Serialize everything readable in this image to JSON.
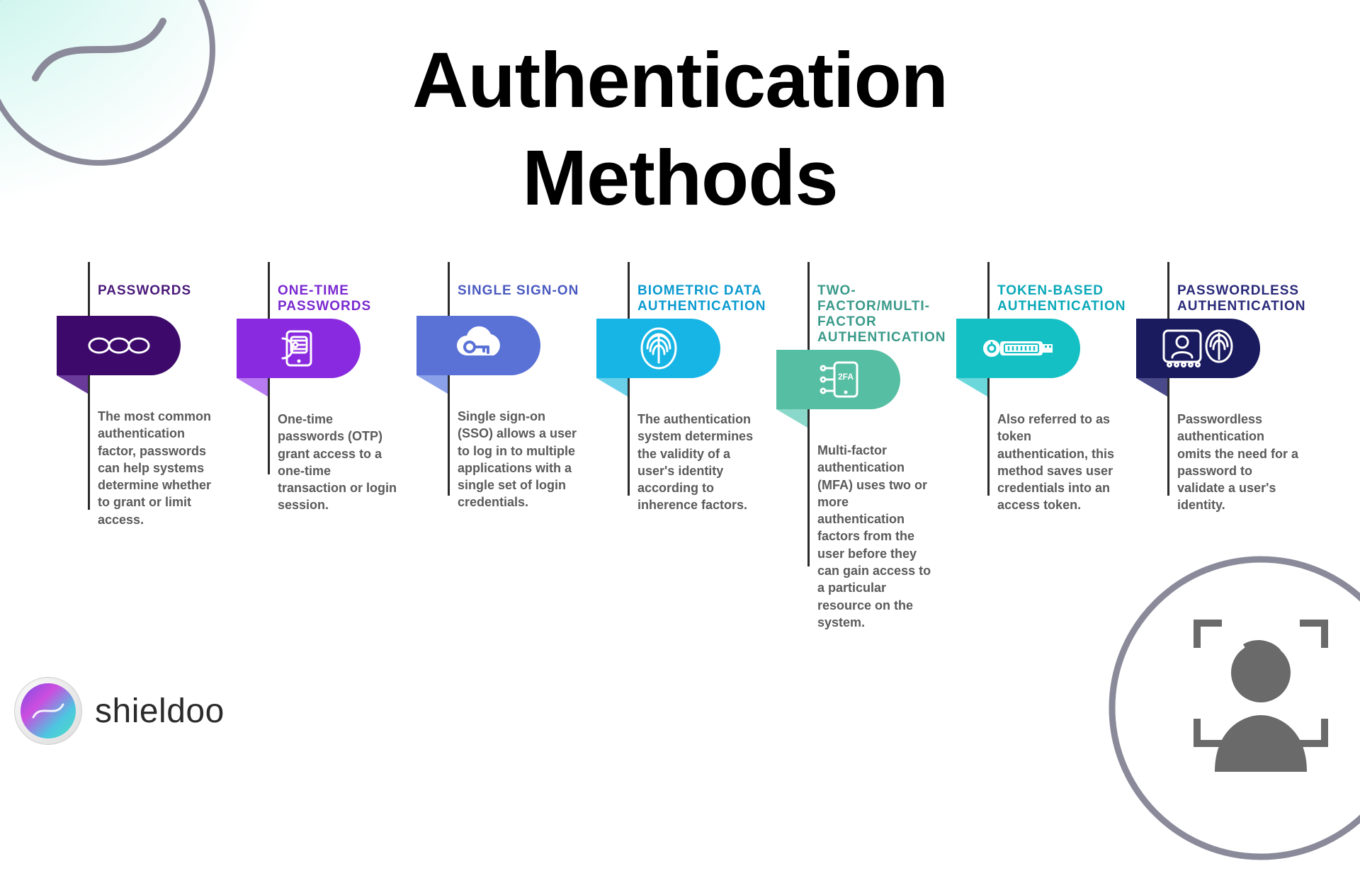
{
  "title_line1": "Authentication",
  "title_line2": "Methods",
  "brand": "shieldoo",
  "colors": {
    "text_heading": "#000000",
    "text_body": "#5a5a5a",
    "divider": "#2b2b2b",
    "deco_stroke": "#8a8a9a"
  },
  "cards": [
    {
      "label": "PASSWORDS",
      "label_color": "#4a1a7a",
      "badge_color": "#3d0a6b",
      "fold_color": "#6a3a9a",
      "vline_height": 350,
      "icon": "link-chain",
      "desc": "The most common authentication factor, passwords can help systems determine whether to grant or limit access."
    },
    {
      "label": "ONE-TIME PASSWORDS",
      "label_color": "#7a2ad0",
      "badge_color": "#8a2ae0",
      "fold_color": "#b77af0",
      "vline_height": 300,
      "icon": "otp-phone",
      "desc": "One-time passwords (OTP) grant access to a one-time transaction or login session."
    },
    {
      "label": "SINGLE SIGN-ON",
      "label_color": "#4a5ac0",
      "badge_color": "#5a72d6",
      "fold_color": "#8aa0e8",
      "vline_height": 330,
      "icon": "cloud-key",
      "desc": "Single sign-on (SSO) allows a user to log in to multiple applications with a single set of login credentials."
    },
    {
      "label": "BIOMETRIC DATA AUTHENTICATION",
      "label_color": "#0a9ad0",
      "badge_color": "#16b5e5",
      "fold_color": "#6ad0ea",
      "vline_height": 330,
      "icon": "fingerprint",
      "desc": "The authentication system determines the validity of a user's identity according to inherence factors."
    },
    {
      "label": "TWO-FACTOR/MULTI-FACTOR AUTHENTICATION",
      "label_color": "#3a9a8a",
      "badge_color": "#56bfa3",
      "fold_color": "#8ad8ca",
      "vline_height": 430,
      "icon": "mfa-phone",
      "desc": "Multi-factor authentication (MFA) uses two or more authentication factors from the user before they can gain access to a particular resource on the system."
    },
    {
      "label": "TOKEN-BASED AUTHENTICATION",
      "label_color": "#0aa8b8",
      "badge_color": "#15c0c5",
      "fold_color": "#6ad8da",
      "vline_height": 330,
      "icon": "usb-key",
      "desc": "Also referred to as token authentication, this method saves user credentials into an access token."
    },
    {
      "label": "PASSWORDLESS AUTHENTICATION",
      "label_color": "#2a2a7a",
      "badge_color": "#1a1a5e",
      "fold_color": "#4a4a8a",
      "vline_height": 330,
      "icon": "id-fingerprint",
      "desc": "Passwordless authentication omits the need for a password to validate a user's identity."
    }
  ]
}
